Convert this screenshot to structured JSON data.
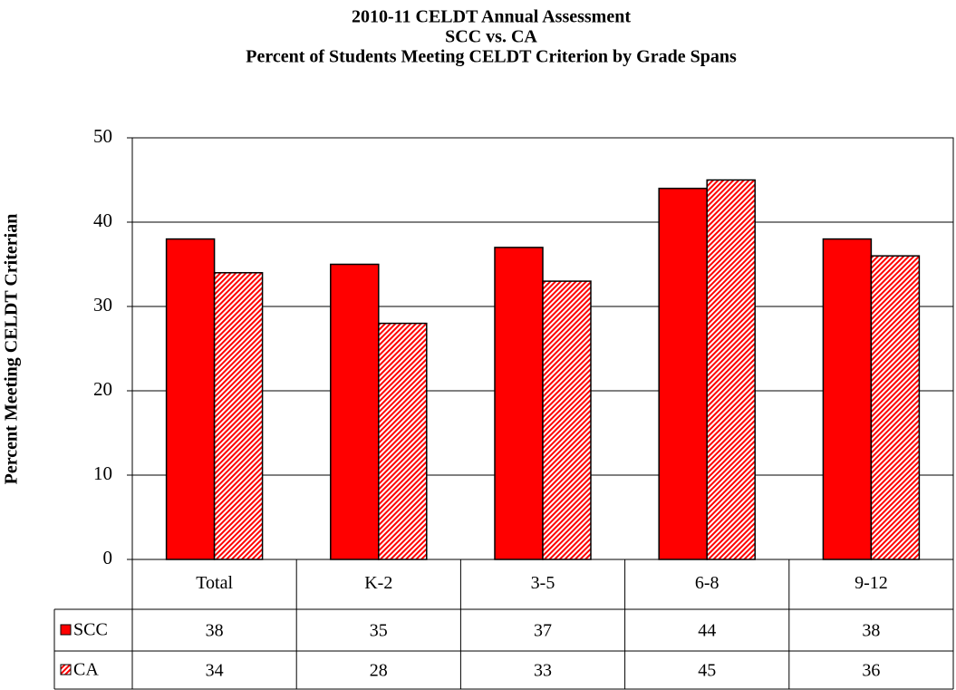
{
  "chart_data": {
    "type": "bar",
    "title_lines": [
      "2010-11 CELDT Annual Assessment",
      "SCC vs. CA",
      "Percent of Students Meeting CELDT Criterion by Grade Spans"
    ],
    "y_label": "Percent  Meeting CELDT Criterian",
    "categories": [
      "Total",
      "K-2",
      "3-5",
      "6-8",
      "9-12"
    ],
    "series": [
      {
        "name": "SCC",
        "color": "#ff0000",
        "pattern": "solid",
        "values": [
          38,
          35,
          37,
          44,
          38
        ]
      },
      {
        "name": "CA",
        "color": "#ff0000",
        "pattern": "hatch",
        "values": [
          34,
          28,
          33,
          45,
          36
        ]
      }
    ],
    "ylim": [
      0,
      50
    ],
    "yticks": [
      0,
      10,
      20,
      30,
      40,
      50
    ],
    "grid": true,
    "data_table": true
  }
}
